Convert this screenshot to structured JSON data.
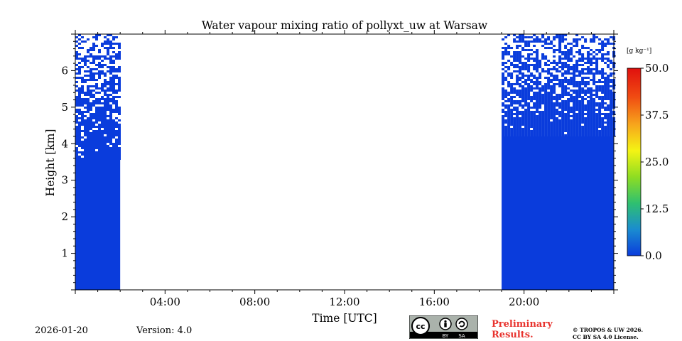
{
  "chart_data": {
    "type": "heatmap",
    "title": "Water vapour mixing ratio of pollyxt_uw at Warsaw",
    "xlabel": "Time [UTC]",
    "ylabel": "Height [km]",
    "xlim_hours": [
      0,
      24
    ],
    "ylim_km": [
      0,
      7
    ],
    "x_ticks": [
      {
        "hour": 4,
        "label": "04:00"
      },
      {
        "hour": 8,
        "label": "08:00"
      },
      {
        "hour": 12,
        "label": "12:00"
      },
      {
        "hour": 16,
        "label": "16:00"
      },
      {
        "hour": 20,
        "label": "20:00"
      }
    ],
    "y_ticks": [
      {
        "km": 1,
        "label": "1"
      },
      {
        "km": 2,
        "label": "2"
      },
      {
        "km": 3,
        "label": "3"
      },
      {
        "km": 4,
        "label": "4"
      },
      {
        "km": 5,
        "label": "5"
      },
      {
        "km": 6,
        "label": "6"
      }
    ],
    "data_segments": [
      {
        "start_hour": 0.0,
        "end_hour": 2.0,
        "dense_top_km": 3.6,
        "sparse_top_km": 7.0,
        "value_g_per_kg": 2.0
      },
      {
        "start_hour": 19.0,
        "end_hour": 24.0,
        "dense_top_km": 4.2,
        "sparse_top_km": 7.0,
        "value_g_per_kg": 2.0
      }
    ],
    "colorbar": {
      "label": "[g kg⁻¹]",
      "min": 0.0,
      "max": 50.0,
      "ticks": [
        "0.0",
        "12.5",
        "25.0",
        "37.5",
        "50.0"
      ],
      "colors": [
        "#0a3cdc",
        "#1a8cd0",
        "#2fc070",
        "#8edd22",
        "#f4f414",
        "#f7a51c",
        "#f04a12",
        "#e0100e"
      ]
    }
  },
  "footer": {
    "date": "2026-01-20",
    "version": "Version: 4.0",
    "preliminary_line1": "Preliminary",
    "preliminary_line2": "Results.",
    "license_line1": "© TROPOS & UW 2026.",
    "license_line2": "CC BY SA 4.0 License.",
    "cc_badge": {
      "cc": "cc",
      "by": "BY",
      "sa": "SA"
    }
  }
}
